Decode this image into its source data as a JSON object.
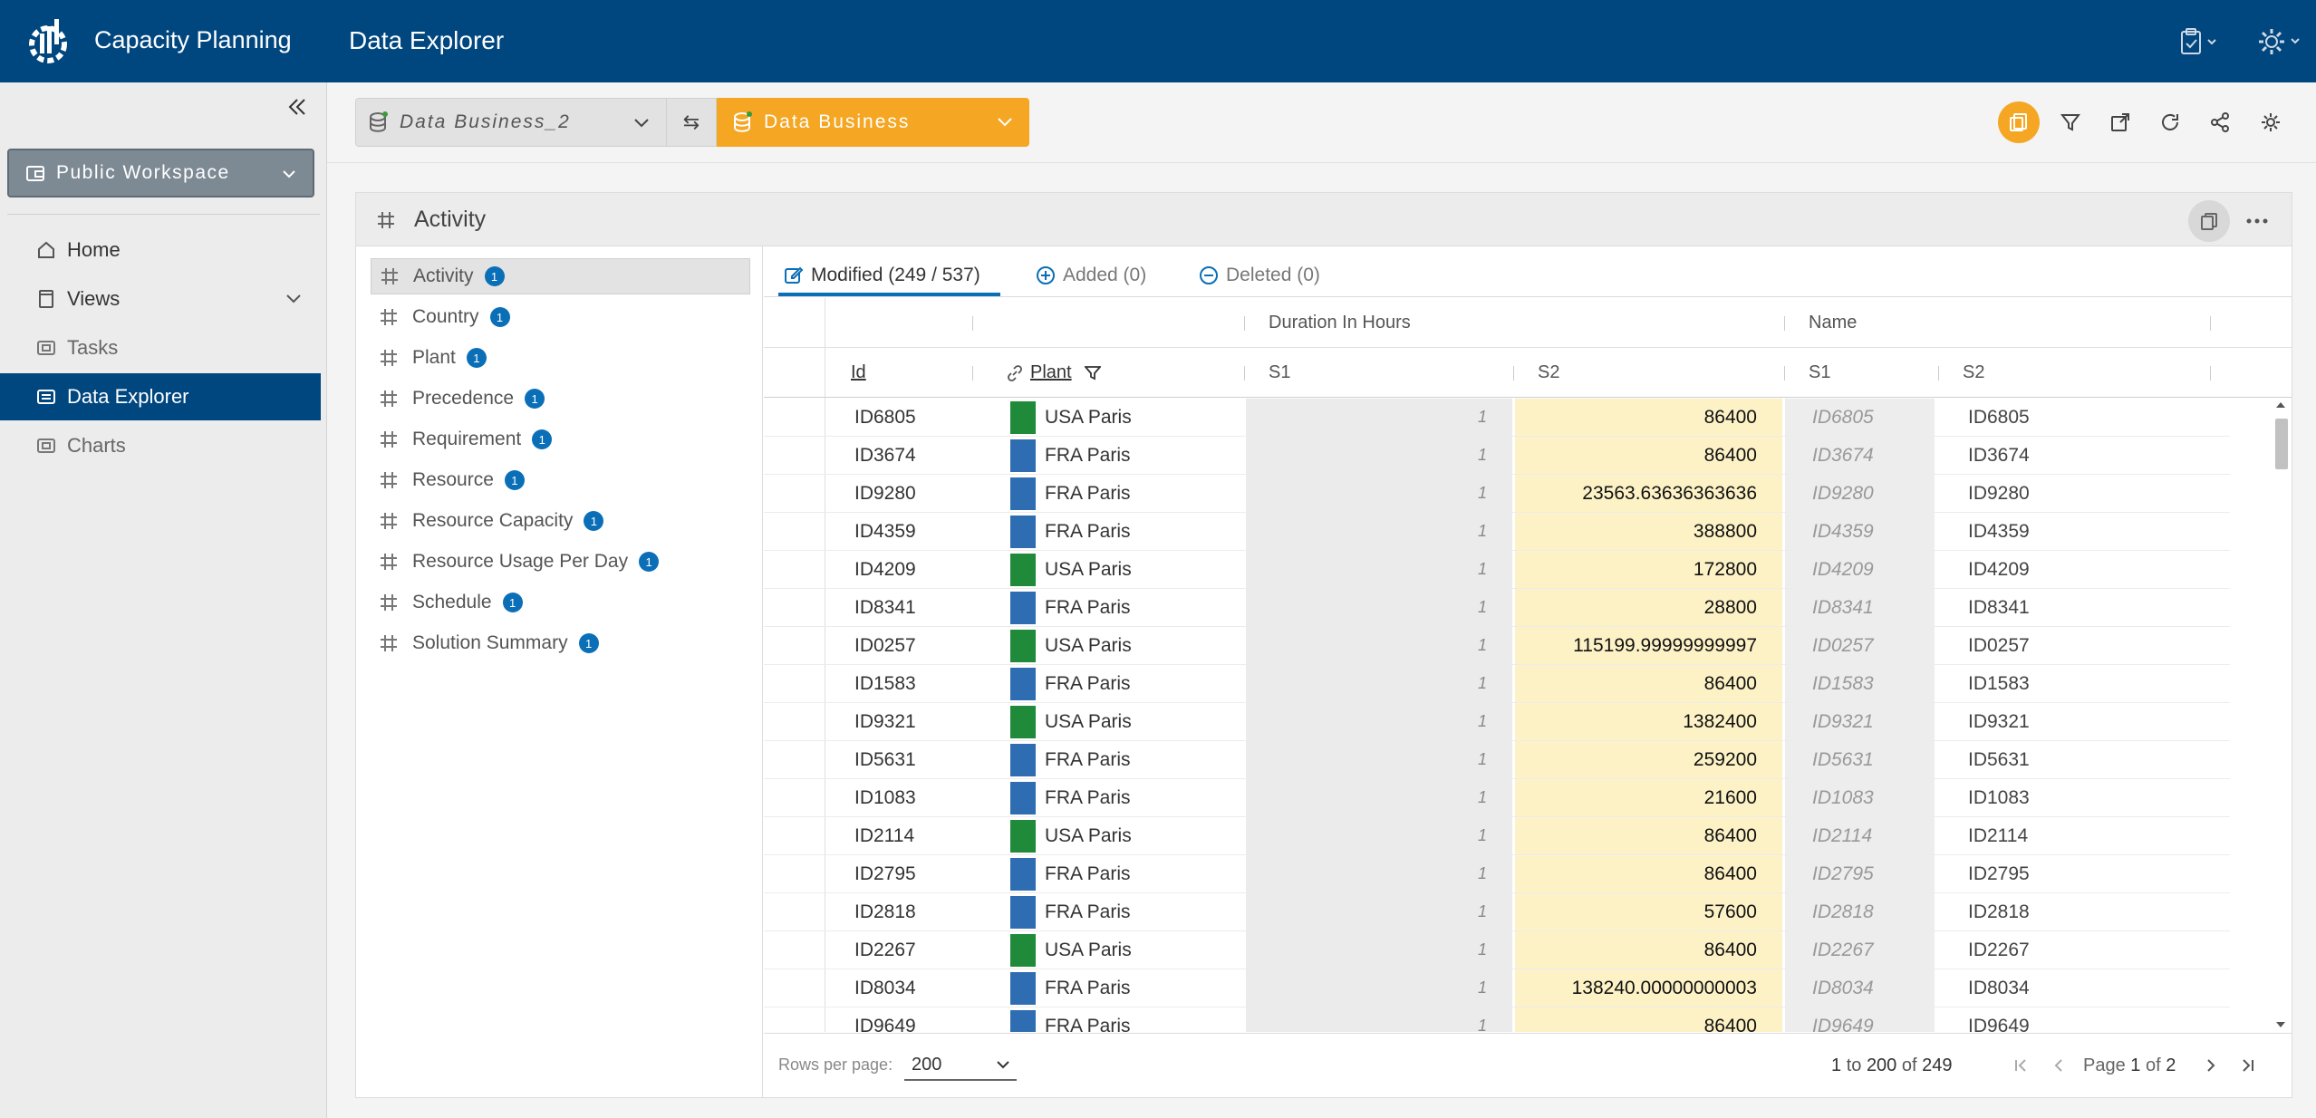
{
  "header": {
    "app_title": "Capacity Planning",
    "page_title": "Data Explorer"
  },
  "sidebar": {
    "workspace": "Public Workspace",
    "items": [
      {
        "label": "Home",
        "icon": "home-icon"
      },
      {
        "label": "Views",
        "icon": "views-icon"
      },
      {
        "label": "Tasks",
        "icon": "tasks-icon"
      },
      {
        "label": "Data Explorer",
        "icon": "data-explorer-icon"
      },
      {
        "label": "Charts",
        "icon": "charts-icon"
      }
    ]
  },
  "toolbar": {
    "source_a": "Data Business_2",
    "source_b": "Data Business",
    "swap_symbol": "⇆"
  },
  "panel": {
    "title": "Activity",
    "tables": [
      {
        "name": "Activity",
        "badge": "1"
      },
      {
        "name": "Country",
        "badge": "1"
      },
      {
        "name": "Plant",
        "badge": "1"
      },
      {
        "name": "Precedence",
        "badge": "1"
      },
      {
        "name": "Requirement",
        "badge": "1"
      },
      {
        "name": "Resource",
        "badge": "1"
      },
      {
        "name": "Resource Capacity",
        "badge": "1"
      },
      {
        "name": "Resource Usage Per Day",
        "badge": "1"
      },
      {
        "name": "Schedule",
        "badge": "1"
      },
      {
        "name": "Solution Summary",
        "badge": "1"
      }
    ],
    "tabs": {
      "modified": "Modified (249 / 537)",
      "added": "Added (0)",
      "deleted": "Deleted (0)"
    },
    "grid": {
      "group_headers": {
        "duration": "Duration In Hours",
        "name": "Name"
      },
      "columns": {
        "id": "Id",
        "plant": "Plant",
        "s1": "S1",
        "s2": "S2",
        "name_s1": "S1",
        "name_s2": "S2"
      },
      "rows": [
        {
          "id": "ID6805",
          "plant": "USA Paris",
          "s1": "1",
          "s2": "86400",
          "n1": "ID6805",
          "n2": "ID6805"
        },
        {
          "id": "ID3674",
          "plant": "FRA Paris",
          "s1": "1",
          "s2": "86400",
          "n1": "ID3674",
          "n2": "ID3674"
        },
        {
          "id": "ID9280",
          "plant": "FRA Paris",
          "s1": "1",
          "s2": "23563.63636363636",
          "n1": "ID9280",
          "n2": "ID9280"
        },
        {
          "id": "ID4359",
          "plant": "FRA Paris",
          "s1": "1",
          "s2": "388800",
          "n1": "ID4359",
          "n2": "ID4359"
        },
        {
          "id": "ID4209",
          "plant": "USA Paris",
          "s1": "1",
          "s2": "172800",
          "n1": "ID4209",
          "n2": "ID4209"
        },
        {
          "id": "ID8341",
          "plant": "FRA Paris",
          "s1": "1",
          "s2": "28800",
          "n1": "ID8341",
          "n2": "ID8341"
        },
        {
          "id": "ID0257",
          "plant": "USA Paris",
          "s1": "1",
          "s2": "115199.99999999997",
          "n1": "ID0257",
          "n2": "ID0257"
        },
        {
          "id": "ID1583",
          "plant": "FRA Paris",
          "s1": "1",
          "s2": "86400",
          "n1": "ID1583",
          "n2": "ID1583"
        },
        {
          "id": "ID9321",
          "plant": "USA Paris",
          "s1": "1",
          "s2": "1382400",
          "n1": "ID9321",
          "n2": "ID9321"
        },
        {
          "id": "ID5631",
          "plant": "FRA Paris",
          "s1": "1",
          "s2": "259200",
          "n1": "ID5631",
          "n2": "ID5631"
        },
        {
          "id": "ID1083",
          "plant": "FRA Paris",
          "s1": "1",
          "s2": "21600",
          "n1": "ID1083",
          "n2": "ID1083"
        },
        {
          "id": "ID2114",
          "plant": "USA Paris",
          "s1": "1",
          "s2": "86400",
          "n1": "ID2114",
          "n2": "ID2114"
        },
        {
          "id": "ID2795",
          "plant": "FRA Paris",
          "s1": "1",
          "s2": "86400",
          "n1": "ID2795",
          "n2": "ID2795"
        },
        {
          "id": "ID2818",
          "plant": "FRA Paris",
          "s1": "1",
          "s2": "57600",
          "n1": "ID2818",
          "n2": "ID2818"
        },
        {
          "id": "ID2267",
          "plant": "USA Paris",
          "s1": "1",
          "s2": "86400",
          "n1": "ID2267",
          "n2": "ID2267"
        },
        {
          "id": "ID8034",
          "plant": "FRA Paris",
          "s1": "1",
          "s2": "138240.00000000003",
          "n1": "ID8034",
          "n2": "ID8034"
        },
        {
          "id": "ID9649",
          "plant": "FRA Paris",
          "s1": "1",
          "s2": "86400",
          "n1": "ID9649",
          "n2": "ID9649"
        }
      ]
    },
    "footer": {
      "rows_per_page_label": "Rows per page:",
      "rows_per_page_value": "200",
      "range_from": "1",
      "range_to_word": "to",
      "range_to": "200",
      "range_of_word": "of",
      "range_total": "249",
      "page_word": "Page",
      "page_current": "1",
      "page_of_word": "of",
      "page_total": "2"
    }
  },
  "colors": {
    "header_bg": "#00467f",
    "accent_orange": "#f5a623",
    "active_blue": "#0b6fb8",
    "plant_usa": "#1e8a3a",
    "plant_fra": "#2f6db3",
    "modified_bg": "#fdf2c6"
  }
}
